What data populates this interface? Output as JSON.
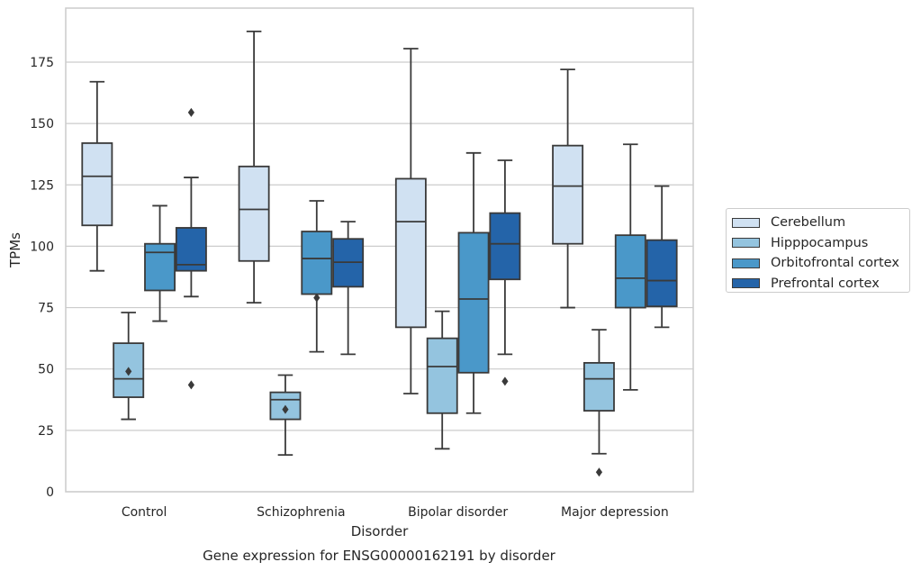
{
  "chart_data": {
    "type": "box",
    "title": "Gene expression for ENSG00000162191 by disorder",
    "xlabel": "Disorder",
    "ylabel": "TPMs",
    "ylim": [
      0,
      197
    ],
    "yticks": [
      0,
      25,
      50,
      75,
      100,
      125,
      150,
      175
    ],
    "grid": "horizontal",
    "legend_position": "right",
    "categories": [
      "Control",
      "Schizophrenia",
      "Bipolar disorder",
      "Major depression"
    ],
    "series": [
      {
        "name": "Cerebellum",
        "color": "#d0e1f2",
        "boxes": [
          {
            "whisker_low": 90,
            "q1": 108.5,
            "median": 128.5,
            "q3": 142,
            "whisker_high": 167,
            "outliers": []
          },
          {
            "whisker_low": 77,
            "q1": 94,
            "median": 115,
            "q3": 132.5,
            "whisker_high": 187.5,
            "outliers": []
          },
          {
            "whisker_low": 40,
            "q1": 67,
            "median": 110,
            "q3": 127.5,
            "whisker_high": 180.5,
            "outliers": []
          },
          {
            "whisker_low": 75,
            "q1": 101,
            "median": 124.5,
            "q3": 141,
            "whisker_high": 172,
            "outliers": []
          }
        ]
      },
      {
        "name": "Hipppocampus",
        "color": "#94c4df",
        "boxes": [
          {
            "whisker_low": 29.5,
            "q1": 38.5,
            "median": 46,
            "q3": 60.5,
            "whisker_high": 73,
            "outliers": [
              49
            ]
          },
          {
            "whisker_low": 15,
            "q1": 29.5,
            "median": 37.5,
            "q3": 40.5,
            "whisker_high": 47.5,
            "outliers": [
              33.5
            ]
          },
          {
            "whisker_low": 17.5,
            "q1": 32,
            "median": 51,
            "q3": 62.5,
            "whisker_high": 73.5,
            "outliers": []
          },
          {
            "whisker_low": 15.5,
            "q1": 33,
            "median": 46,
            "q3": 52.5,
            "whisker_high": 66,
            "outliers": [
              8
            ]
          }
        ]
      },
      {
        "name": "Orbitofrontal cortex",
        "color": "#4a98c9",
        "boxes": [
          {
            "whisker_low": 69.5,
            "q1": 82,
            "median": 97.5,
            "q3": 101,
            "whisker_high": 116.5,
            "outliers": []
          },
          {
            "whisker_low": 57,
            "q1": 80.5,
            "median": 95,
            "q3": 106,
            "whisker_high": 118.5,
            "outliers": [
              79
            ]
          },
          {
            "whisker_low": 32,
            "q1": 48.5,
            "median": 78.5,
            "q3": 105.5,
            "whisker_high": 138,
            "outliers": []
          },
          {
            "whisker_low": 41.5,
            "q1": 75,
            "median": 87,
            "q3": 104.5,
            "whisker_high": 141.5,
            "outliers": []
          }
        ]
      },
      {
        "name": "Prefrontal cortex",
        "color": "#2464a9",
        "boxes": [
          {
            "whisker_low": 79.5,
            "q1": 90,
            "median": 92.5,
            "q3": 107.5,
            "whisker_high": 128,
            "outliers": [
              154.5,
              43.5
            ]
          },
          {
            "whisker_low": 56,
            "q1": 83.5,
            "median": 93.5,
            "q3": 103,
            "whisker_high": 110,
            "outliers": []
          },
          {
            "whisker_low": 56,
            "q1": 86.5,
            "median": 101,
            "q3": 113.5,
            "whisker_high": 135,
            "outliers": [
              45
            ]
          },
          {
            "whisker_low": 67,
            "q1": 75.5,
            "median": 86,
            "q3": 102.5,
            "whisker_high": 124.5,
            "outliers": []
          }
        ]
      }
    ]
  }
}
